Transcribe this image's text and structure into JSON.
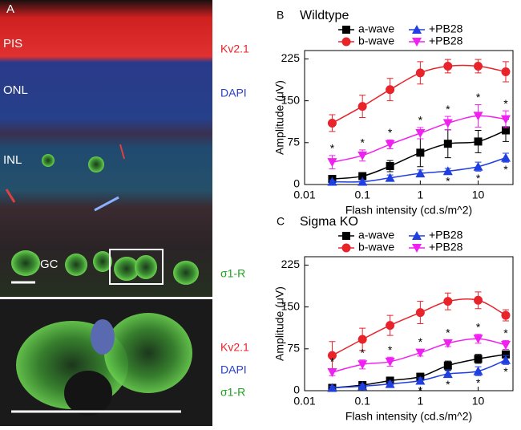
{
  "panel_a": {
    "label": "A",
    "layers": [
      "PIS",
      "ONL",
      "INL",
      "GC"
    ],
    "stains": [
      "Kv2.1",
      "DAPI",
      "σ1-R"
    ],
    "inset_stains": [
      "Kv2.1",
      "DAPI",
      "σ1-R"
    ]
  },
  "chart_data": [
    {
      "type": "line",
      "panel": "B",
      "title": "Wildtype",
      "xlabel": "Flash intensity (cd.s/m^2)",
      "ylabel": "Amplitude (μV)",
      "xscale": "log",
      "x": [
        0.03,
        0.1,
        0.3,
        1,
        3,
        10,
        30
      ],
      "xlim": [
        0.01,
        40
      ],
      "xticks": [
        0.01,
        0.1,
        1,
        10
      ],
      "ylim": [
        0,
        240
      ],
      "yticks": [
        0,
        75,
        150,
        225
      ],
      "annotation": "*",
      "series": [
        {
          "name": "a-wave",
          "color": "#000000",
          "marker": "square",
          "values": [
            10,
            15,
            33,
            57,
            73,
            77,
            97
          ],
          "errors": [
            5,
            5,
            10,
            25,
            25,
            20,
            20
          ]
        },
        {
          "name": "b-wave",
          "color": "#e8232a",
          "marker": "circle",
          "values": [
            110,
            140,
            170,
            200,
            212,
            212,
            202
          ],
          "errors": [
            15,
            20,
            20,
            20,
            12,
            12,
            18
          ]
        },
        {
          "name": "+PB28",
          "color": "#1f3fe0",
          "marker": "triangle-up",
          "values": [
            5,
            5,
            12,
            20,
            24,
            32,
            48
          ],
          "errors": [
            3,
            3,
            5,
            6,
            5,
            8,
            8
          ]
        },
        {
          "name": "+PB28",
          "color": "#f020f0",
          "marker": "triangle-down",
          "values": [
            40,
            52,
            72,
            92,
            110,
            123,
            117
          ],
          "errors": [
            12,
            10,
            8,
            10,
            12,
            20,
            15
          ]
        }
      ]
    },
    {
      "type": "line",
      "panel": "C",
      "title": "Sigma KO",
      "xlabel": "Flash intensity (cd.s/m^2)",
      "ylabel": "Amplitude (μV)",
      "xscale": "log",
      "x": [
        0.03,
        0.1,
        0.3,
        1,
        3,
        10,
        30
      ],
      "xlim": [
        0.01,
        40
      ],
      "xticks": [
        0.01,
        0.1,
        1,
        10
      ],
      "ylim": [
        0,
        240
      ],
      "yticks": [
        0,
        75,
        150,
        225
      ],
      "annotation": "*",
      "series": [
        {
          "name": "a-wave",
          "color": "#000000",
          "marker": "square",
          "values": [
            5,
            10,
            18,
            25,
            45,
            57,
            65
          ],
          "errors": [
            3,
            4,
            5,
            6,
            8,
            8,
            6
          ]
        },
        {
          "name": "b-wave",
          "color": "#e8232a",
          "marker": "circle",
          "values": [
            63,
            92,
            117,
            140,
            160,
            162,
            135
          ],
          "errors": [
            25,
            20,
            18,
            20,
            15,
            15,
            10
          ]
        },
        {
          "name": "+PB28",
          "color": "#1f3fe0",
          "marker": "triangle-up",
          "values": [
            5,
            8,
            12,
            18,
            30,
            35,
            55
          ],
          "errors": [
            3,
            3,
            4,
            5,
            6,
            8,
            8
          ]
        },
        {
          "name": "+PB28",
          "color": "#f020f0",
          "marker": "triangle-down",
          "values": [
            33,
            47,
            52,
            68,
            85,
            93,
            82
          ],
          "errors": [
            6,
            8,
            8,
            6,
            6,
            8,
            8
          ]
        }
      ]
    }
  ]
}
